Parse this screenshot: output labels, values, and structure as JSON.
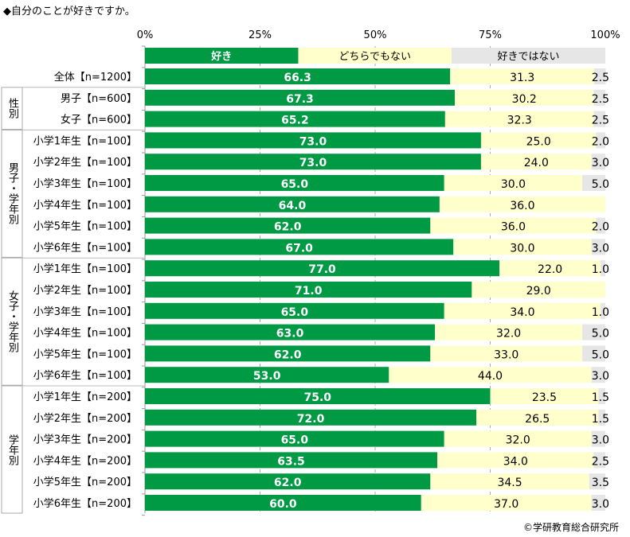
{
  "title": "◆自分のことが好きですか。",
  "credit": "©学研教育総合研究所",
  "colors": {
    "like": "#009944",
    "neutral": "#ffffcc",
    "dislike": "#e6e6e6"
  },
  "chart_data": {
    "type": "bar",
    "stacked": true,
    "orientation": "horizontal",
    "title": "◆自分のことが好きですか。",
    "xlim": [
      0,
      100
    ],
    "x_ticks": [
      "0%",
      "25%",
      "50%",
      "75%",
      "100%"
    ],
    "legend_position": "top",
    "series_names": [
      "好き",
      "どちらでもない",
      "好きではない"
    ],
    "groups": [
      {
        "label": "",
        "rows": [
          0
        ]
      },
      {
        "label": "性別",
        "rows": [
          1,
          2
        ]
      },
      {
        "label": "男子・学年別",
        "rows": [
          3,
          4,
          5,
          6,
          7,
          8
        ]
      },
      {
        "label": "女子・学年別",
        "rows": [
          9,
          10,
          11,
          12,
          13,
          14
        ]
      },
      {
        "label": "学年別",
        "rows": [
          15,
          16,
          17,
          18,
          19,
          20
        ]
      }
    ],
    "categories": [
      "全体【n=1200】",
      "男子【n=600】",
      "女子【n=600】",
      "小学1年生【n=100】",
      "小学2年生【n=100】",
      "小学3年生【n=100】",
      "小学4年生【n=100】",
      "小学5年生【n=100】",
      "小学6年生【n=100】",
      "小学1年生【n=100】",
      "小学2年生【n=100】",
      "小学3年生【n=100】",
      "小学4年生【n=100】",
      "小学5年生【n=100】",
      "小学6年生【n=100】",
      "小学1年生【n=200】",
      "小学2年生【n=200】",
      "小学3年生【n=200】",
      "小学4年生【n=200】",
      "小学5年生【n=200】",
      "小学6年生【n=200】"
    ],
    "series": [
      {
        "name": "好き",
        "values": [
          66.3,
          67.3,
          65.2,
          73.0,
          73.0,
          65.0,
          64.0,
          62.0,
          67.0,
          77.0,
          71.0,
          65.0,
          63.0,
          62.0,
          53.0,
          75.0,
          72.0,
          65.0,
          63.5,
          62.0,
          60.0
        ]
      },
      {
        "name": "どちらでもない",
        "values": [
          31.3,
          30.2,
          32.3,
          25.0,
          24.0,
          30.0,
          36.0,
          36.0,
          30.0,
          22.0,
          29.0,
          34.0,
          32.0,
          33.0,
          44.0,
          23.5,
          26.5,
          32.0,
          34.0,
          34.5,
          37.0
        ]
      },
      {
        "name": "好きではない",
        "values": [
          2.5,
          2.5,
          2.5,
          2.0,
          3.0,
          5.0,
          null,
          2.0,
          3.0,
          1.0,
          null,
          1.0,
          5.0,
          5.0,
          3.0,
          1.5,
          1.5,
          3.0,
          2.5,
          3.5,
          3.0
        ]
      }
    ]
  }
}
